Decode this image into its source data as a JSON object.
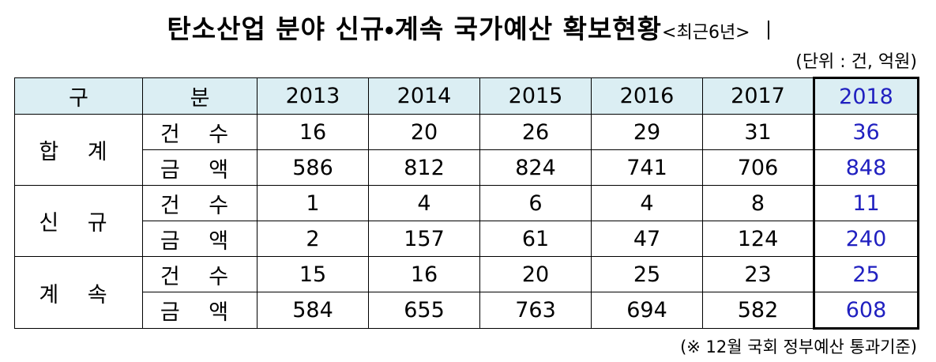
{
  "header": {
    "title": "탄소산업 분야 신규・계속 국가예산 확보현황",
    "title_suffix": "<최근6년>",
    "unit": "(단위 : 건, 억원)"
  },
  "table": {
    "corner": [
      "구",
      "분"
    ],
    "years": [
      "2013",
      "2014",
      "2015",
      "2016",
      "2017",
      "2018"
    ],
    "groups": [
      {
        "label": "합 계",
        "rows": [
          {
            "label": "건 수",
            "values": [
              "16",
              "20",
              "26",
              "29",
              "31",
              "36"
            ]
          },
          {
            "label": "금 액",
            "values": [
              "586",
              "812",
              "824",
              "741",
              "706",
              "848"
            ]
          }
        ]
      },
      {
        "label": "신 규",
        "rows": [
          {
            "label": "건 수",
            "values": [
              "1",
              "4",
              "6",
              "4",
              "8",
              "11"
            ]
          },
          {
            "label": "금 액",
            "values": [
              "2",
              "157",
              "61",
              "47",
              "124",
              "240"
            ]
          }
        ]
      },
      {
        "label": "계 속",
        "rows": [
          {
            "label": "건 수",
            "values": [
              "15",
              "16",
              "20",
              "25",
              "23",
              "25"
            ]
          },
          {
            "label": "금 액",
            "values": [
              "584",
              "655",
              "763",
              "694",
              "582",
              "608"
            ]
          }
        ]
      }
    ]
  },
  "footnote": "(※ 12월 국회 정부예산 통과기준)"
}
